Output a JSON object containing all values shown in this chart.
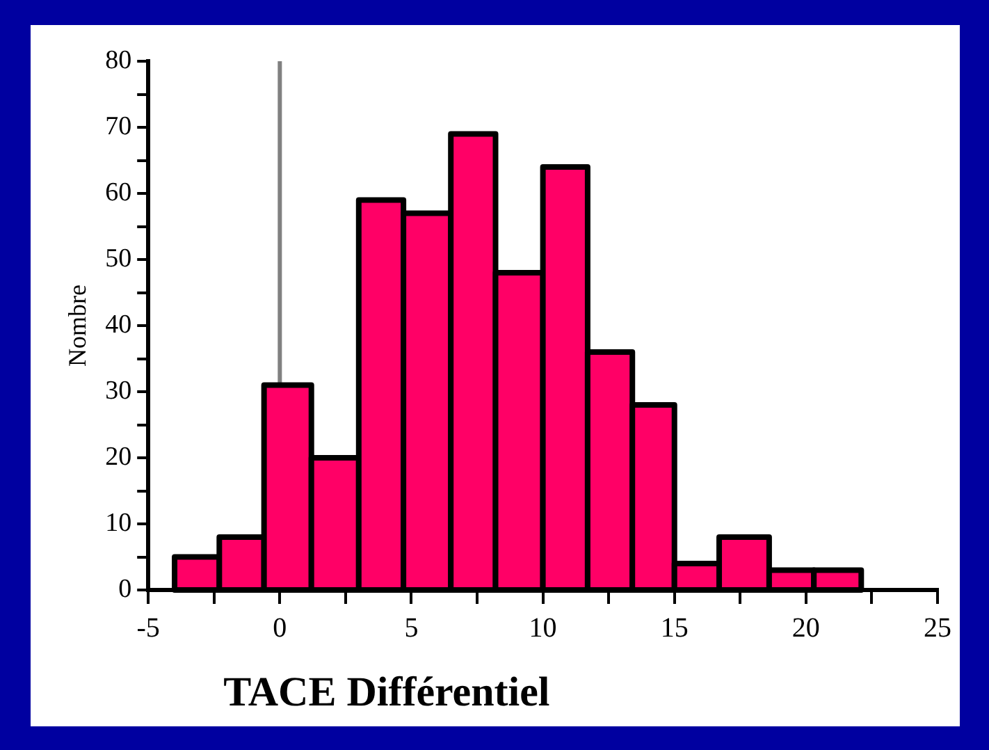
{
  "chart_data": {
    "type": "histogram",
    "xlabel": "TACE Différentiel",
    "ylabel": "Nombre",
    "bins": [
      -4.0,
      -2.3,
      -0.6,
      1.2,
      3.0,
      4.7,
      6.5,
      8.2,
      10.0,
      11.7,
      13.4,
      15.0,
      16.7,
      18.6,
      20.3,
      22.1
    ],
    "values": [
      5,
      8,
      31,
      20,
      59,
      57,
      69,
      48,
      64,
      36,
      28,
      4,
      8,
      3,
      3
    ],
    "color": "#ff0066",
    "xlim": [
      -5,
      25
    ],
    "xticks": [
      -5,
      {
        "value": -2.5,
        "label": null
      },
      0,
      {
        "value": 2.5,
        "label": null
      },
      5,
      {
        "value": 7.5,
        "label": null
      },
      10,
      {
        "value": 12.5,
        "label": null
      },
      15,
      {
        "value": 17.5,
        "label": null
      },
      20,
      {
        "value": 22.5,
        "label": null
      },
      25
    ],
    "ylim": [
      0,
      80
    ],
    "yticks": [
      0,
      {
        "value": 5,
        "label": null
      },
      10,
      {
        "value": 15,
        "label": null
      },
      20,
      {
        "value": 25,
        "label": null
      },
      30,
      {
        "value": 35,
        "label": null
      },
      40,
      {
        "value": 45,
        "label": null
      },
      50,
      {
        "value": 55,
        "label": null
      },
      60,
      {
        "value": 65,
        "label": null
      },
      70,
      {
        "value": 75,
        "label": null
      },
      80
    ],
    "ref_lines": [
      {
        "axis": "x",
        "value": 0,
        "label": null,
        "color": "#808080"
      }
    ]
  }
}
